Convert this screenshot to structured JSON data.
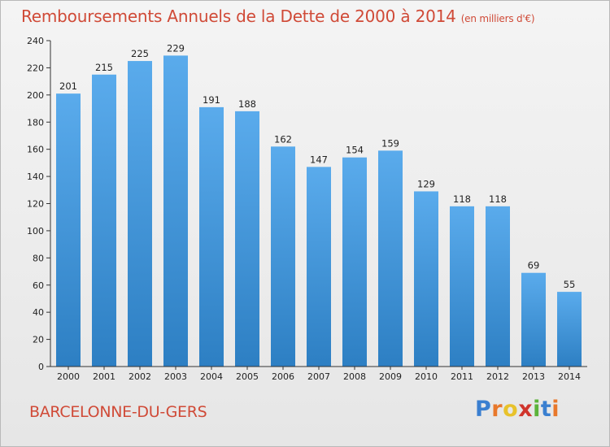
{
  "title": "Remboursements Annuels de la Dette de 2000 à 2014",
  "subtitle": "(en milliers d'€)",
  "city": "BARCELONNE-DU-GERS",
  "logo": {
    "letters": [
      "P",
      "r",
      "o",
      "x",
      "i",
      "t",
      "i"
    ],
    "colors": [
      "#3a7fd0",
      "#e8782b",
      "#e8c22b",
      "#d0342c",
      "#5cb33a",
      "#3a7fd0",
      "#e8782b"
    ]
  },
  "colors": {
    "bar_top": "#5aabec",
    "bar_bottom": "#2d7fc3"
  },
  "chart_data": {
    "type": "bar",
    "categories": [
      "2000",
      "2001",
      "2002",
      "2003",
      "2004",
      "2005",
      "2006",
      "2007",
      "2008",
      "2009",
      "2010",
      "2011",
      "2012",
      "2013",
      "2014"
    ],
    "values": [
      201,
      215,
      225,
      229,
      191,
      188,
      162,
      147,
      154,
      159,
      129,
      118,
      118,
      69,
      55
    ],
    "ylim": [
      0,
      240
    ],
    "yticks": [
      0,
      20,
      40,
      60,
      80,
      100,
      120,
      140,
      160,
      180,
      200,
      220,
      240
    ],
    "grid": false,
    "title": "Remboursements Annuels de la Dette de 2000 à 2014"
  }
}
